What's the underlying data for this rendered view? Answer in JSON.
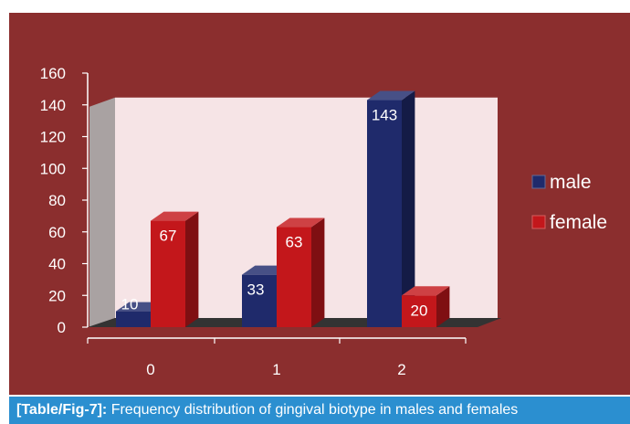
{
  "caption": {
    "label": "[Table/Fig-7]:",
    "text": " Frequency distribution of gingival biotype in males and females"
  },
  "colors": {
    "background": "#8b2e2e",
    "plot_wall": "#f6e4e6",
    "side_wall": "#a9a2a2",
    "floor": "#333333",
    "male": "#1f2a6b",
    "female": "#c3171b",
    "caption_bg": "#2b8fd0"
  },
  "chart_data": {
    "type": "bar",
    "categories": [
      "0",
      "1",
      "2"
    ],
    "series": [
      {
        "name": "male",
        "values": [
          10,
          33,
          143
        ]
      },
      {
        "name": "female",
        "values": [
          67,
          63,
          20
        ]
      }
    ],
    "yticks": [
      0,
      20,
      40,
      60,
      80,
      100,
      120,
      140,
      160
    ],
    "ylim": [
      0,
      160
    ],
    "legend_position": "right",
    "grid": false,
    "style": "3d"
  }
}
